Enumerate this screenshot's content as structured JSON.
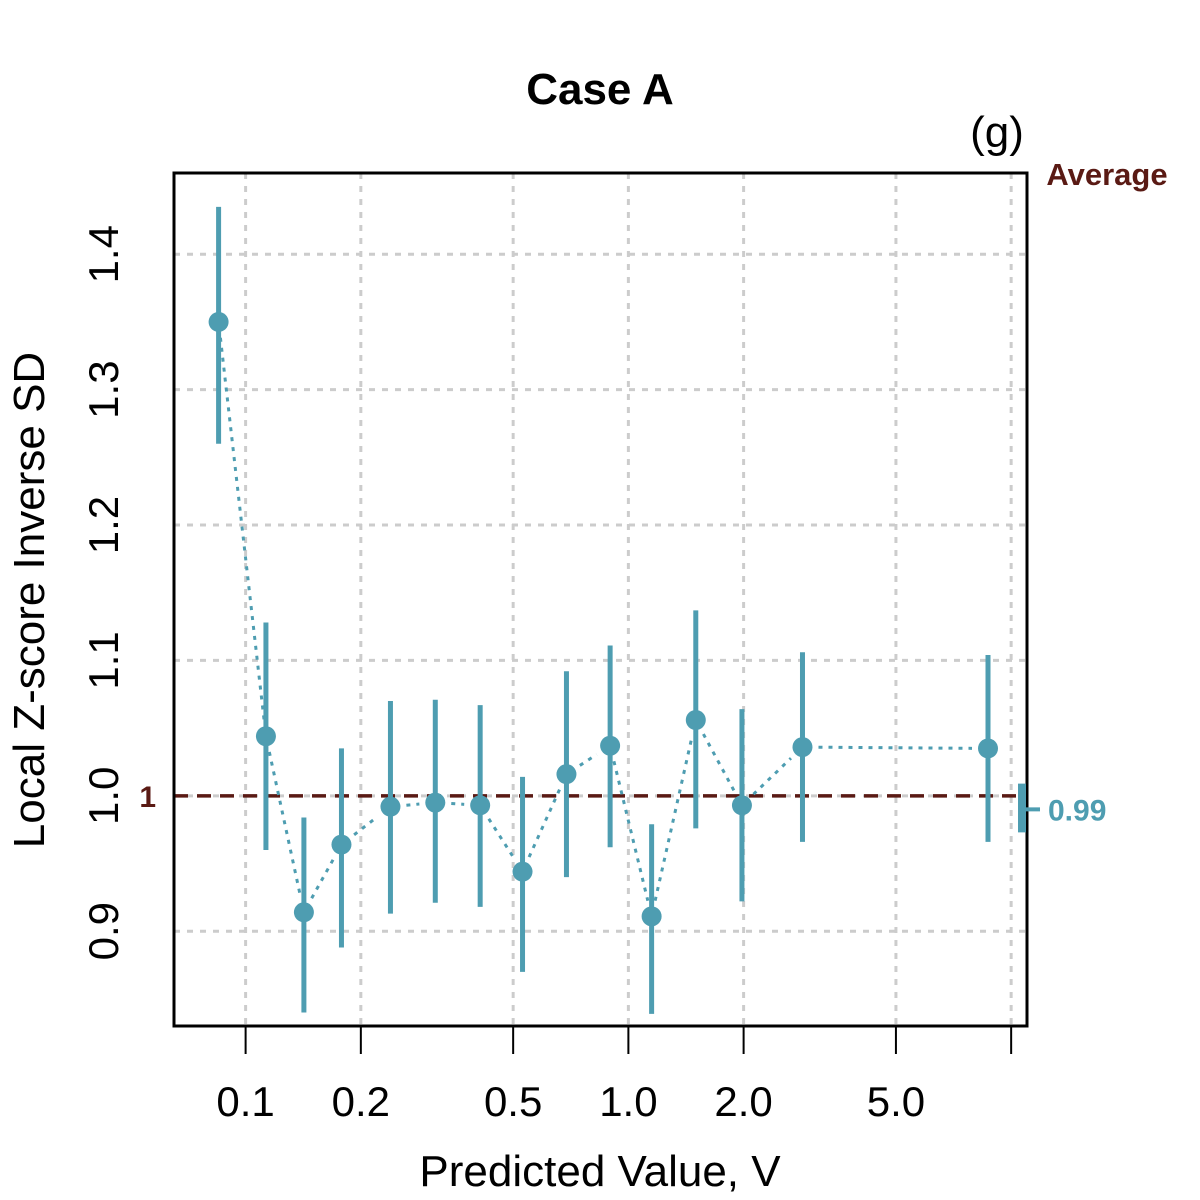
{
  "chart_data": {
    "type": "scatter",
    "title": "Case A",
    "panel_label": "(g)",
    "xlabel": "Predicted Value, V",
    "ylabel": "Local Z-score Inverse SD",
    "xscale": "log",
    "xlim": [
      0.065,
      11.0
    ],
    "ylim": [
      0.83,
      1.46
    ],
    "x_ticks": [
      0.1,
      0.2,
      0.5,
      1.0,
      2.0,
      5.0,
      10.0
    ],
    "x_tick_labels": [
      "0.1",
      "0.2",
      "0.5",
      "1.0",
      "2.0",
      "5.0",
      ""
    ],
    "y_ticks": [
      0.9,
      1.0,
      1.1,
      1.2,
      1.3,
      1.4
    ],
    "y_tick_labels": [
      "0.9",
      "1.0",
      "1.1",
      "1.2",
      "1.3",
      "1.4"
    ],
    "grid": true,
    "reference_line": {
      "y": 1.0,
      "label": "1",
      "color": "#5a1a14",
      "style": "dashed"
    },
    "average": {
      "label": "Average",
      "value": 0.99,
      "value_label": "0.99",
      "lower": 0.973,
      "upper": 1.009,
      "color": "#4e9db1"
    },
    "series": [
      {
        "name": "Local Z-score Inverse SD",
        "color": "#4e9db1",
        "points": [
          {
            "x": 0.085,
            "y": 1.35,
            "lower": 1.26,
            "upper": 1.435
          },
          {
            "x": 0.113,
            "y": 1.044,
            "lower": 0.96,
            "upper": 1.128
          },
          {
            "x": 0.142,
            "y": 0.914,
            "lower": 0.84,
            "upper": 0.984
          },
          {
            "x": 0.178,
            "y": 0.964,
            "lower": 0.888,
            "upper": 1.035
          },
          {
            "x": 0.239,
            "y": 0.992,
            "lower": 0.913,
            "upper": 1.07
          },
          {
            "x": 0.313,
            "y": 0.995,
            "lower": 0.921,
            "upper": 1.071
          },
          {
            "x": 0.41,
            "y": 0.993,
            "lower": 0.918,
            "upper": 1.067
          },
          {
            "x": 0.529,
            "y": 0.944,
            "lower": 0.87,
            "upper": 1.014
          },
          {
            "x": 0.689,
            "y": 1.016,
            "lower": 0.94,
            "upper": 1.092
          },
          {
            "x": 0.896,
            "y": 1.037,
            "lower": 0.962,
            "upper": 1.111
          },
          {
            "x": 1.15,
            "y": 0.911,
            "lower": 0.839,
            "upper": 0.979
          },
          {
            "x": 1.5,
            "y": 1.056,
            "lower": 0.976,
            "upper": 1.137
          },
          {
            "x": 1.98,
            "y": 0.993,
            "lower": 0.922,
            "upper": 1.064
          },
          {
            "x": 2.85,
            "y": 1.036,
            "lower": 0.966,
            "upper": 1.106
          },
          {
            "x": 8.7,
            "y": 1.035,
            "lower": 0.966,
            "upper": 1.104
          }
        ]
      }
    ]
  }
}
